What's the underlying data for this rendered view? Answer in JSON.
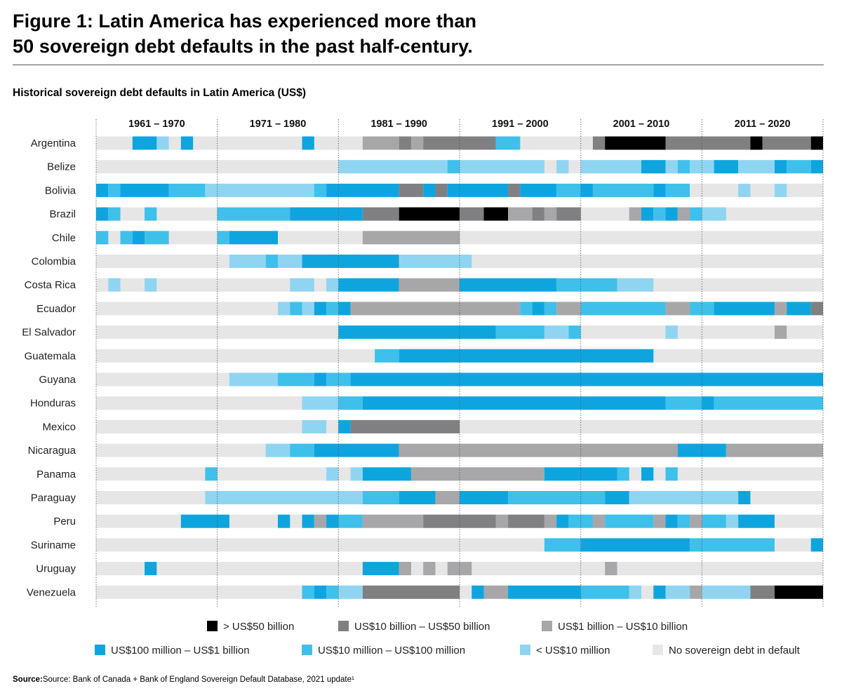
{
  "title_line1": "Figure 1: Latin America has experienced more than",
  "title_line2": "50 sovereign debt defaults in the past half-century.",
  "subtitle": "Historical sovereign debt defaults in Latin America (US$)",
  "source_label": "Source:",
  "source_text": "Source: Bank of Canada + Bank of England Sovereign Default Database, 2021 update¹",
  "colors": {
    "gt50b": "#000000",
    "b10_50": "#808083",
    "b1_10": "#a7a7aa",
    "m100_1b": "#0ea5df",
    "m10_100": "#3ec0eb",
    "lt10m": "#8fd5f2",
    "none": "#e6e6e7"
  },
  "chart_data": {
    "type": "heatmap",
    "title": "Historical sovereign debt defaults in Latin America (US$)",
    "x_start": 1961,
    "x_end": 2020,
    "decades": [
      "1961 – 1970",
      "1971 – 1980",
      "1981 – 1990",
      "1991 – 2000",
      "2001 – 2010",
      "2011 – 2020"
    ],
    "legend": [
      {
        "key": "gt50b",
        "label": "> US$50 billion"
      },
      {
        "key": "b10_50",
        "label": "US$10 billion – US$50 billion"
      },
      {
        "key": "b1_10",
        "label": "US$1 billion – US$10 billion"
      },
      {
        "key": "m100_1b",
        "label": "US$100 million – US$1 billion"
      },
      {
        "key": "m10_100",
        "label": "US$10 million – US$100 million"
      },
      {
        "key": "lt10m",
        "label": "< US$10 million"
      },
      {
        "key": "none",
        "label": "No sovereign debt in default"
      }
    ],
    "countries": [
      {
        "name": "Argentina",
        "segments": [
          [
            1964,
            1965,
            "m100_1b"
          ],
          [
            1966,
            1966,
            "lt10m"
          ],
          [
            1968,
            1968,
            "m100_1b"
          ],
          [
            1978,
            1978,
            "m100_1b"
          ],
          [
            1983,
            1985,
            "b1_10"
          ],
          [
            1986,
            1986,
            "b10_50"
          ],
          [
            1987,
            1987,
            "b1_10"
          ],
          [
            1988,
            1993,
            "b10_50"
          ],
          [
            1994,
            1995,
            "m10_100"
          ],
          [
            2002,
            2002,
            "b10_50"
          ],
          [
            2003,
            2007,
            "gt50b"
          ],
          [
            2008,
            2014,
            "b10_50"
          ],
          [
            2015,
            2015,
            "gt50b"
          ],
          [
            2016,
            2019,
            "b10_50"
          ],
          [
            2020,
            2020,
            "gt50b"
          ]
        ]
      },
      {
        "name": "Belize",
        "segments": [
          [
            1981,
            1989,
            "lt10m"
          ],
          [
            1990,
            1990,
            "m10_100"
          ],
          [
            1991,
            1997,
            "lt10m"
          ],
          [
            1999,
            1999,
            "lt10m"
          ],
          [
            2001,
            2005,
            "lt10m"
          ],
          [
            2006,
            2007,
            "m100_1b"
          ],
          [
            2008,
            2008,
            "lt10m"
          ],
          [
            2009,
            2009,
            "m10_100"
          ],
          [
            2010,
            2011,
            "lt10m"
          ],
          [
            2012,
            2013,
            "m100_1b"
          ],
          [
            2014,
            2016,
            "lt10m"
          ],
          [
            2017,
            2017,
            "m100_1b"
          ],
          [
            2018,
            2019,
            "m10_100"
          ],
          [
            2020,
            2020,
            "m100_1b"
          ]
        ]
      },
      {
        "name": "Bolivia",
        "segments": [
          [
            1961,
            1961,
            "m100_1b"
          ],
          [
            1962,
            1962,
            "m10_100"
          ],
          [
            1963,
            1966,
            "m100_1b"
          ],
          [
            1967,
            1969,
            "m10_100"
          ],
          [
            1970,
            1978,
            "lt10m"
          ],
          [
            1979,
            1979,
            "m10_100"
          ],
          [
            1980,
            1985,
            "m100_1b"
          ],
          [
            1986,
            1987,
            "b10_50"
          ],
          [
            1988,
            1988,
            "m100_1b"
          ],
          [
            1989,
            1989,
            "b10_50"
          ],
          [
            1990,
            1994,
            "m100_1b"
          ],
          [
            1995,
            1995,
            "b10_50"
          ],
          [
            1996,
            1998,
            "m100_1b"
          ],
          [
            1999,
            2000,
            "m10_100"
          ],
          [
            2001,
            2001,
            "m100_1b"
          ],
          [
            2002,
            2006,
            "m10_100"
          ],
          [
            2007,
            2007,
            "m100_1b"
          ],
          [
            2008,
            2009,
            "m10_100"
          ],
          [
            2014,
            2014,
            "lt10m"
          ],
          [
            2017,
            2017,
            "lt10m"
          ]
        ]
      },
      {
        "name": "Brazil",
        "segments": [
          [
            1961,
            1961,
            "m100_1b"
          ],
          [
            1962,
            1962,
            "m10_100"
          ],
          [
            1965,
            1965,
            "m10_100"
          ],
          [
            1971,
            1976,
            "m10_100"
          ],
          [
            1977,
            1982,
            "m100_1b"
          ],
          [
            1983,
            1985,
            "b10_50"
          ],
          [
            1986,
            1990,
            "gt50b"
          ],
          [
            1991,
            1992,
            "b10_50"
          ],
          [
            1993,
            1994,
            "gt50b"
          ],
          [
            1995,
            1996,
            "b1_10"
          ],
          [
            1997,
            1997,
            "b10_50"
          ],
          [
            1998,
            1998,
            "b1_10"
          ],
          [
            1999,
            2000,
            "b10_50"
          ],
          [
            2005,
            2005,
            "b1_10"
          ],
          [
            2006,
            2006,
            "m100_1b"
          ],
          [
            2007,
            2007,
            "m10_100"
          ],
          [
            2008,
            2008,
            "m100_1b"
          ],
          [
            2009,
            2009,
            "b1_10"
          ],
          [
            2010,
            2010,
            "m10_100"
          ],
          [
            2011,
            2012,
            "lt10m"
          ]
        ]
      },
      {
        "name": "Chile",
        "segments": [
          [
            1961,
            1961,
            "m10_100"
          ],
          [
            1963,
            1963,
            "m10_100"
          ],
          [
            1964,
            1964,
            "m100_1b"
          ],
          [
            1965,
            1966,
            "m10_100"
          ],
          [
            1971,
            1971,
            "m10_100"
          ],
          [
            1972,
            1975,
            "m100_1b"
          ],
          [
            1983,
            1990,
            "b1_10"
          ]
        ]
      },
      {
        "name": "Colombia",
        "segments": [
          [
            1972,
            1974,
            "lt10m"
          ],
          [
            1975,
            1975,
            "m10_100"
          ],
          [
            1976,
            1977,
            "lt10m"
          ],
          [
            1978,
            1985,
            "m100_1b"
          ],
          [
            1986,
            1991,
            "lt10m"
          ]
        ]
      },
      {
        "name": "Costa Rica",
        "segments": [
          [
            1962,
            1962,
            "lt10m"
          ],
          [
            1965,
            1965,
            "lt10m"
          ],
          [
            1977,
            1978,
            "lt10m"
          ],
          [
            1980,
            1980,
            "lt10m"
          ],
          [
            1981,
            1985,
            "m100_1b"
          ],
          [
            1986,
            1990,
            "b1_10"
          ],
          [
            1991,
            1998,
            "m100_1b"
          ],
          [
            1999,
            2003,
            "m10_100"
          ],
          [
            2004,
            2006,
            "lt10m"
          ]
        ]
      },
      {
        "name": "Ecuador",
        "segments": [
          [
            1976,
            1976,
            "lt10m"
          ],
          [
            1977,
            1977,
            "m10_100"
          ],
          [
            1978,
            1978,
            "lt10m"
          ],
          [
            1979,
            1979,
            "m100_1b"
          ],
          [
            1980,
            1980,
            "m10_100"
          ],
          [
            1981,
            1981,
            "m100_1b"
          ],
          [
            1982,
            1995,
            "b1_10"
          ],
          [
            1996,
            1996,
            "m10_100"
          ],
          [
            1997,
            1997,
            "m100_1b"
          ],
          [
            1998,
            1998,
            "m10_100"
          ],
          [
            1999,
            2000,
            "b1_10"
          ],
          [
            2001,
            2007,
            "m10_100"
          ],
          [
            2008,
            2009,
            "b1_10"
          ],
          [
            2010,
            2011,
            "m10_100"
          ],
          [
            2012,
            2016,
            "m100_1b"
          ],
          [
            2017,
            2017,
            "b1_10"
          ],
          [
            2018,
            2019,
            "m100_1b"
          ],
          [
            2020,
            2020,
            "b10_50"
          ]
        ]
      },
      {
        "name": "El Salvador",
        "segments": [
          [
            1981,
            1993,
            "m100_1b"
          ],
          [
            1994,
            1997,
            "m10_100"
          ],
          [
            1998,
            1999,
            "lt10m"
          ],
          [
            2000,
            2000,
            "m10_100"
          ],
          [
            2008,
            2008,
            "lt10m"
          ],
          [
            2017,
            2017,
            "b1_10"
          ]
        ]
      },
      {
        "name": "Guatemala",
        "segments": [
          [
            1984,
            1985,
            "m10_100"
          ],
          [
            1986,
            2006,
            "m100_1b"
          ]
        ]
      },
      {
        "name": "Guyana",
        "segments": [
          [
            1972,
            1975,
            "lt10m"
          ],
          [
            1976,
            1978,
            "m10_100"
          ],
          [
            1979,
            1979,
            "m100_1b"
          ],
          [
            1980,
            1981,
            "m10_100"
          ],
          [
            1982,
            2020,
            "m100_1b"
          ]
        ]
      },
      {
        "name": "Honduras",
        "segments": [
          [
            1978,
            1980,
            "lt10m"
          ],
          [
            1981,
            1982,
            "m10_100"
          ],
          [
            1983,
            2007,
            "m100_1b"
          ],
          [
            2008,
            2010,
            "m10_100"
          ],
          [
            2011,
            2011,
            "m100_1b"
          ],
          [
            2012,
            2020,
            "m10_100"
          ]
        ]
      },
      {
        "name": "Mexico",
        "segments": [
          [
            1978,
            1979,
            "lt10m"
          ],
          [
            1981,
            1981,
            "m100_1b"
          ],
          [
            1982,
            1990,
            "b10_50"
          ]
        ]
      },
      {
        "name": "Nicaragua",
        "segments": [
          [
            1975,
            1976,
            "lt10m"
          ],
          [
            1977,
            1978,
            "m10_100"
          ],
          [
            1979,
            1985,
            "m100_1b"
          ],
          [
            1986,
            2008,
            "b1_10"
          ],
          [
            2009,
            2012,
            "m100_1b"
          ],
          [
            2013,
            2020,
            "b1_10"
          ]
        ]
      },
      {
        "name": "Panama",
        "segments": [
          [
            1970,
            1970,
            "m10_100"
          ],
          [
            1980,
            1980,
            "lt10m"
          ],
          [
            1982,
            1982,
            "lt10m"
          ],
          [
            1983,
            1986,
            "m100_1b"
          ],
          [
            1987,
            1997,
            "b1_10"
          ],
          [
            1998,
            2003,
            "m100_1b"
          ],
          [
            2004,
            2004,
            "m10_100"
          ],
          [
            2006,
            2006,
            "m100_1b"
          ],
          [
            2008,
            2008,
            "m10_100"
          ]
        ]
      },
      {
        "name": "Paraguay",
        "segments": [
          [
            1970,
            1982,
            "lt10m"
          ],
          [
            1983,
            1985,
            "m10_100"
          ],
          [
            1986,
            1988,
            "m100_1b"
          ],
          [
            1989,
            1990,
            "b1_10"
          ],
          [
            1991,
            1994,
            "m100_1b"
          ],
          [
            1995,
            2002,
            "m10_100"
          ],
          [
            2003,
            2004,
            "m100_1b"
          ],
          [
            2005,
            2013,
            "lt10m"
          ],
          [
            2014,
            2014,
            "m100_1b"
          ]
        ]
      },
      {
        "name": "Peru",
        "segments": [
          [
            1968,
            1971,
            "m100_1b"
          ],
          [
            1976,
            1976,
            "m100_1b"
          ],
          [
            1978,
            1978,
            "m100_1b"
          ],
          [
            1979,
            1979,
            "b1_10"
          ],
          [
            1980,
            1980,
            "m100_1b"
          ],
          [
            1981,
            1982,
            "m10_100"
          ],
          [
            1983,
            1987,
            "b1_10"
          ],
          [
            1988,
            1993,
            "b10_50"
          ],
          [
            1994,
            1994,
            "b1_10"
          ],
          [
            1995,
            1997,
            "b10_50"
          ],
          [
            1998,
            1998,
            "b1_10"
          ],
          [
            1999,
            1999,
            "m100_1b"
          ],
          [
            2000,
            2001,
            "m10_100"
          ],
          [
            2002,
            2002,
            "b1_10"
          ],
          [
            2003,
            2006,
            "m10_100"
          ],
          [
            2007,
            2007,
            "b1_10"
          ],
          [
            2008,
            2008,
            "m100_1b"
          ],
          [
            2009,
            2009,
            "m10_100"
          ],
          [
            2010,
            2010,
            "b1_10"
          ],
          [
            2011,
            2012,
            "m10_100"
          ],
          [
            2013,
            2013,
            "lt10m"
          ],
          [
            2014,
            2016,
            "m100_1b"
          ]
        ]
      },
      {
        "name": "Suriname",
        "segments": [
          [
            1998,
            2000,
            "m10_100"
          ],
          [
            2001,
            2009,
            "m100_1b"
          ],
          [
            2010,
            2016,
            "m10_100"
          ],
          [
            2020,
            2020,
            "m100_1b"
          ]
        ]
      },
      {
        "name": "Uruguay",
        "segments": [
          [
            1965,
            1965,
            "m100_1b"
          ],
          [
            1983,
            1985,
            "m100_1b"
          ],
          [
            1986,
            1986,
            "b1_10"
          ],
          [
            1988,
            1988,
            "b1_10"
          ],
          [
            1990,
            1991,
            "b1_10"
          ],
          [
            2003,
            2003,
            "b1_10"
          ]
        ]
      },
      {
        "name": "Venezuela",
        "segments": [
          [
            1978,
            1978,
            "m10_100"
          ],
          [
            1979,
            1979,
            "m100_1b"
          ],
          [
            1980,
            1980,
            "m10_100"
          ],
          [
            1981,
            1982,
            "lt10m"
          ],
          [
            1983,
            1990,
            "b10_50"
          ],
          [
            1992,
            1992,
            "m100_1b"
          ],
          [
            1993,
            1994,
            "b1_10"
          ],
          [
            1995,
            2000,
            "m100_1b"
          ],
          [
            2001,
            2004,
            "m10_100"
          ],
          [
            2005,
            2005,
            "lt10m"
          ],
          [
            2007,
            2007,
            "m100_1b"
          ],
          [
            2008,
            2009,
            "lt10m"
          ],
          [
            2010,
            2010,
            "b1_10"
          ],
          [
            2011,
            2014,
            "lt10m"
          ],
          [
            2015,
            2016,
            "b10_50"
          ],
          [
            2017,
            2020,
            "gt50b"
          ]
        ]
      }
    ]
  }
}
